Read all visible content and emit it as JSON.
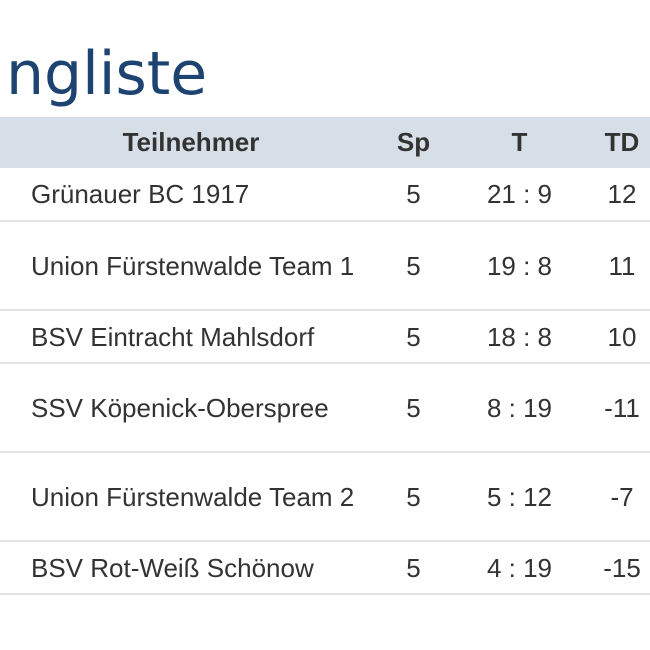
{
  "page": {
    "title": "ngliste"
  },
  "table": {
    "headers": {
      "name": "Teilnehmer",
      "sp": "Sp",
      "t": "T",
      "td": "TD"
    },
    "rows": [
      {
        "name": "Grünauer BC 1917",
        "sp": "5",
        "t": "21 : 9",
        "td": "12"
      },
      {
        "name": "Union Fürstenwalde Team 1",
        "sp": "5",
        "t": "19 : 8",
        "td": "11"
      },
      {
        "name": "BSV Eintracht Mahlsdorf",
        "sp": "5",
        "t": "18 : 8",
        "td": "10"
      },
      {
        "name": "SSV Köpenick-Oberspree",
        "sp": "5",
        "t": "8 : 19",
        "td": "-11"
      },
      {
        "name": "Union Fürstenwalde Team 2",
        "sp": "5",
        "t": "5 : 12",
        "td": "-7"
      },
      {
        "name": "BSV Rot-Weiß Schönow",
        "sp": "5",
        "t": "4 : 19",
        "td": "-15"
      }
    ]
  }
}
